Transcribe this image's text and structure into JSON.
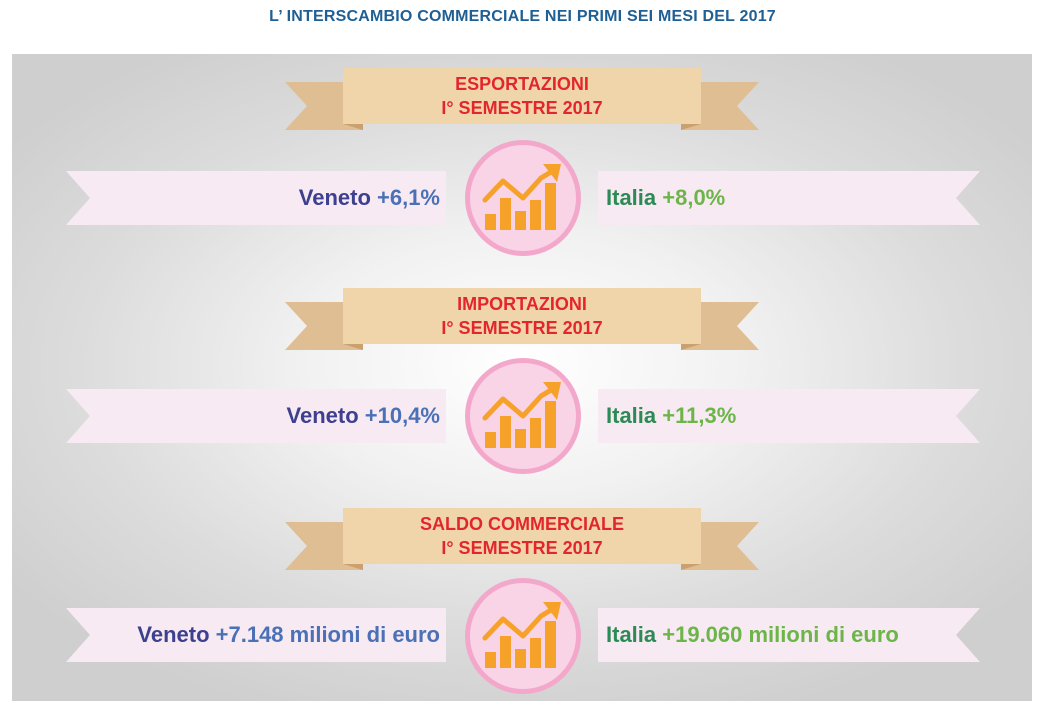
{
  "title": "L’ INTERSCAMBIO COMMERCIALE NEI PRIMI SEI MESI DEL 2017",
  "colors": {
    "title": "#1f5f94",
    "banner_text": "#e3262d",
    "banner_fill": "#f0d5aa",
    "banner_tail": "#dfbe93",
    "ribbon_fill": "#f8eaf2",
    "medallion_ring": "#f3a8cb",
    "medallion_fill": "#f9d3e6",
    "chart_icon": "#f5a12a",
    "veneto_label": "#3d3f8f",
    "veneto_value": "#4a71b6",
    "italia_label": "#2b8a55",
    "italia_value": "#6cb548"
  },
  "sections": [
    {
      "heading_line1": "ESPORTAZIONI",
      "heading_line2": "I° SEMESTRE 2017",
      "icon": "growth-chart-icon",
      "veneto_label": "Veneto",
      "veneto_value": "+6,1%",
      "italia_label": "Italia",
      "italia_value": "+8,0%"
    },
    {
      "heading_line1": "IMPORTAZIONI",
      "heading_line2": "I° SEMESTRE 2017",
      "icon": "growth-chart-icon",
      "veneto_label": "Veneto",
      "veneto_value": "+10,4%",
      "italia_label": "Italia",
      "italia_value": "+11,3%"
    },
    {
      "heading_line1": "SALDO COMMERCIALE",
      "heading_line2": "I° SEMESTRE 2017",
      "icon": "growth-chart-icon",
      "veneto_label": "Veneto",
      "veneto_value": "+7.148 milioni di euro",
      "italia_label": "Italia",
      "italia_value": "+19.060 milioni di euro"
    }
  ]
}
